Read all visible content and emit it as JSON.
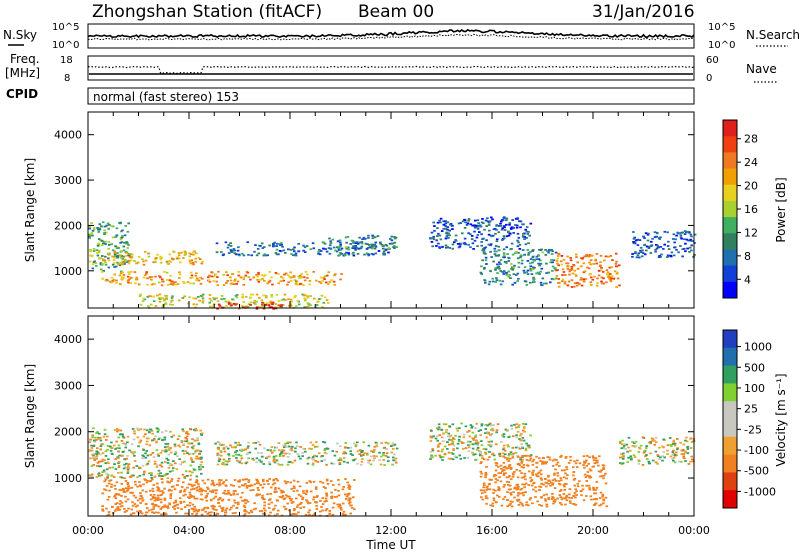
{
  "header": {
    "station": "Zhongshan Station (fitACF)",
    "beam": "Beam 00",
    "date": "31/Jan/2016"
  },
  "top_panel": {
    "left_label": "N.Sky",
    "left_ticks": [
      "10^5",
      "10^0"
    ],
    "right_ticks": [
      "10^5",
      "10^0"
    ],
    "right_label": "N.Search"
  },
  "freq_panel": {
    "left_label_1": "Freq.",
    "left_label_2": "[MHz]",
    "left_ticks": [
      "18",
      "8"
    ],
    "right_ticks": [
      "60",
      "0"
    ],
    "right_label": "Nave"
  },
  "cpid": {
    "label": "CPID",
    "text": "normal (fast stereo) 153"
  },
  "time_axis": {
    "label": "Time UT",
    "ticks": [
      "00:00",
      "04:00",
      "08:00",
      "12:00",
      "16:00",
      "20:00",
      "00:00"
    ]
  },
  "range_axis": {
    "label": "Slant Range [km]",
    "ticks": [
      "4000",
      "3000",
      "2000",
      "1000"
    ]
  },
  "power_scale": {
    "label": "Power [dB]",
    "ticks": [
      "28",
      "24",
      "20",
      "16",
      "12",
      "8",
      "4"
    ],
    "colors": [
      "#e0201c",
      "#f04010",
      "#f07820",
      "#f0a000",
      "#e8d020",
      "#a8d030",
      "#40b060",
      "#308060",
      "#2070b0",
      "#1040d8",
      "#0000ff"
    ]
  },
  "velocity_scale": {
    "label": "Velocity [m s⁻¹]",
    "ticks": [
      "1000",
      "500",
      "100",
      "25",
      "-25",
      "-100",
      "-500",
      "-1000"
    ],
    "colors": [
      "#2040c0",
      "#2070b0",
      "#30a060",
      "#80d030",
      "#c8c8c0",
      "#c8c8c0",
      "#f0a030",
      "#f08020",
      "#e04010",
      "#e00000"
    ]
  },
  "chart_data": {
    "type": "heatmap",
    "x_range_hours": [
      0,
      24
    ],
    "y_range_km": [
      180,
      4500
    ],
    "power_regions": [
      {
        "t0": 0.0,
        "t1": 1.6,
        "r0": 1000,
        "r1": 2100,
        "db": 12
      },
      {
        "t0": 0.0,
        "t1": 4.5,
        "r0": 1150,
        "r1": 1450,
        "db": 20
      },
      {
        "t0": 0.5,
        "t1": 10.0,
        "r0": 700,
        "r1": 1000,
        "db": 22
      },
      {
        "t0": 2.0,
        "t1": 9.5,
        "r0": 200,
        "r1": 500,
        "db": 18
      },
      {
        "t0": 5.0,
        "t1": 8.0,
        "r0": 180,
        "r1": 330,
        "db": 28
      },
      {
        "t0": 5.0,
        "t1": 12.0,
        "r0": 1350,
        "r1": 1650,
        "db": 8
      },
      {
        "t0": 9.5,
        "t1": 12.2,
        "r0": 1500,
        "r1": 1800,
        "db": 10
      },
      {
        "t0": 13.5,
        "t1": 17.5,
        "r0": 1500,
        "r1": 2200,
        "db": 6
      },
      {
        "t0": 15.5,
        "t1": 18.5,
        "r0": 700,
        "r1": 1500,
        "db": 10
      },
      {
        "t0": 18.5,
        "t1": 21.0,
        "r0": 650,
        "r1": 1400,
        "db": 24
      },
      {
        "t0": 21.5,
        "t1": 24.0,
        "r0": 1300,
        "r1": 1900,
        "db": 6
      }
    ],
    "velocity_regions": [
      {
        "t0": 0.0,
        "t1": 4.5,
        "r0": 1000,
        "r1": 2100,
        "v": 0
      },
      {
        "t0": 0.5,
        "t1": 10.5,
        "r0": 200,
        "r1": 1000,
        "v": -300
      },
      {
        "t0": 5.0,
        "t1": 12.2,
        "r0": 1300,
        "r1": 1800,
        "v": 0
      },
      {
        "t0": 13.5,
        "t1": 17.5,
        "r0": 1400,
        "r1": 2200,
        "v": 0
      },
      {
        "t0": 15.5,
        "t1": 20.5,
        "r0": 400,
        "r1": 1500,
        "v": -300
      },
      {
        "t0": 21.0,
        "t1": 24.0,
        "r0": 1300,
        "r1": 1900,
        "v": 0
      }
    ]
  }
}
